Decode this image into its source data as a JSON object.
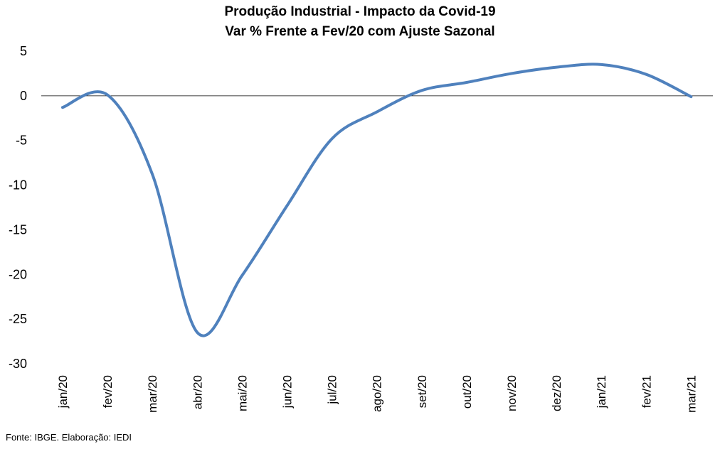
{
  "chart_data": {
    "type": "line",
    "title": "Produção Industrial - Impacto da Covid-19",
    "subtitle": "Var % Frente a Fev/20 com Ajuste Sazonal",
    "xlabel": "",
    "ylabel": "",
    "categories": [
      "jan/20",
      "fev/20",
      "mar/20",
      "abr/20",
      "mai/20",
      "jun/20",
      "jul/20",
      "ago/20",
      "set/20",
      "out/20",
      "nov/20",
      "dez/20",
      "jan/21",
      "fev/21",
      "mar/21"
    ],
    "series": [
      {
        "values": [
          -1.3,
          0.1,
          -8.8,
          -26.5,
          -20.1,
          -12.3,
          -4.8,
          -1.8,
          0.6,
          1.5,
          2.5,
          3.2,
          3.5,
          2.4,
          -0.1
        ]
      }
    ],
    "ylim": [
      -30,
      5
    ],
    "yticks": [
      5,
      0,
      -5,
      -10,
      -15,
      -20,
      -25,
      -30
    ],
    "grid": false,
    "legend": "none",
    "line_color": "#4f81bd"
  },
  "source_note": "Fonte: IBGE. Elaboração: IEDI"
}
